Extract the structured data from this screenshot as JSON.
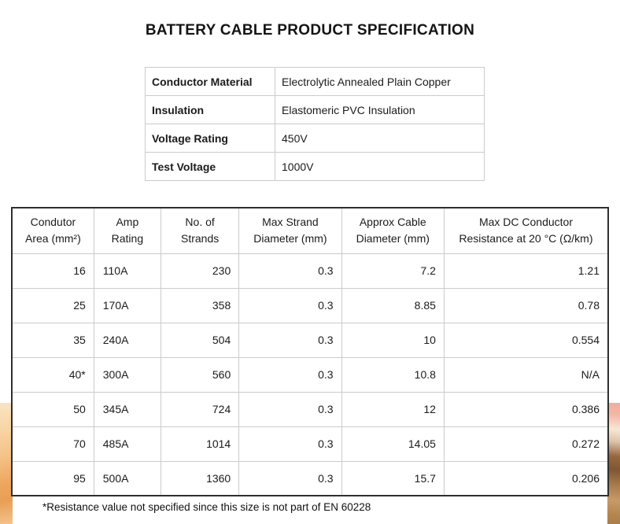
{
  "title": "BATTERY CABLE PRODUCT SPECIFICATION",
  "spec_table": {
    "rows": [
      {
        "label": "Conductor Material",
        "value": "Electrolytic Annealed Plain Copper"
      },
      {
        "label": "Insulation",
        "value": "Elastomeric PVC Insulation"
      },
      {
        "label": "Voltage Rating",
        "value": "450V"
      },
      {
        "label": "Test Voltage",
        "value": "1000V"
      }
    ]
  },
  "main_table": {
    "headers": [
      {
        "line1": "Condutor",
        "line2": "Area (mm²)"
      },
      {
        "line1": "Amp",
        "line2": "Rating"
      },
      {
        "line1": "No. of",
        "line2": "Strands"
      },
      {
        "line1": "Max Strand",
        "line2": "Diameter (mm)"
      },
      {
        "line1": "Approx Cable",
        "line2": "Diameter (mm)"
      },
      {
        "line1": "Max DC Conductor",
        "line2": "Resistance at 20 °C (Ω/km)"
      }
    ],
    "rows": [
      [
        "16",
        "110A",
        "230",
        "0.3",
        "7.2",
        "1.21"
      ],
      [
        "25",
        "170A",
        "358",
        "0.3",
        "8.85",
        "0.78"
      ],
      [
        "35",
        "240A",
        "504",
        "0.3",
        "10",
        "0.554"
      ],
      [
        "40*",
        "300A",
        "560",
        "0.3",
        "10.8",
        "N/A"
      ],
      [
        "50",
        "345A",
        "724",
        "0.3",
        "12",
        "0.386"
      ],
      [
        "70",
        "485A",
        "1014",
        "0.3",
        "14.05",
        "0.272"
      ],
      [
        "95",
        "500A",
        "1360",
        "0.3",
        "15.7",
        "0.206"
      ]
    ]
  },
  "footnote": "*Resistance value not specified since this size is not part of EN 60228",
  "colors": {
    "text": "#1b1b1b",
    "grid_line": "#cbcbcb",
    "table_outer_border": "#2f2f2f",
    "background_accent_orange": "#eda45c",
    "background_accent_peach": "#fbe4c2",
    "background_accent_pink": "#efae9d",
    "background_accent_brown": "#7f5735",
    "background_accent_tan": "#c89a68"
  }
}
